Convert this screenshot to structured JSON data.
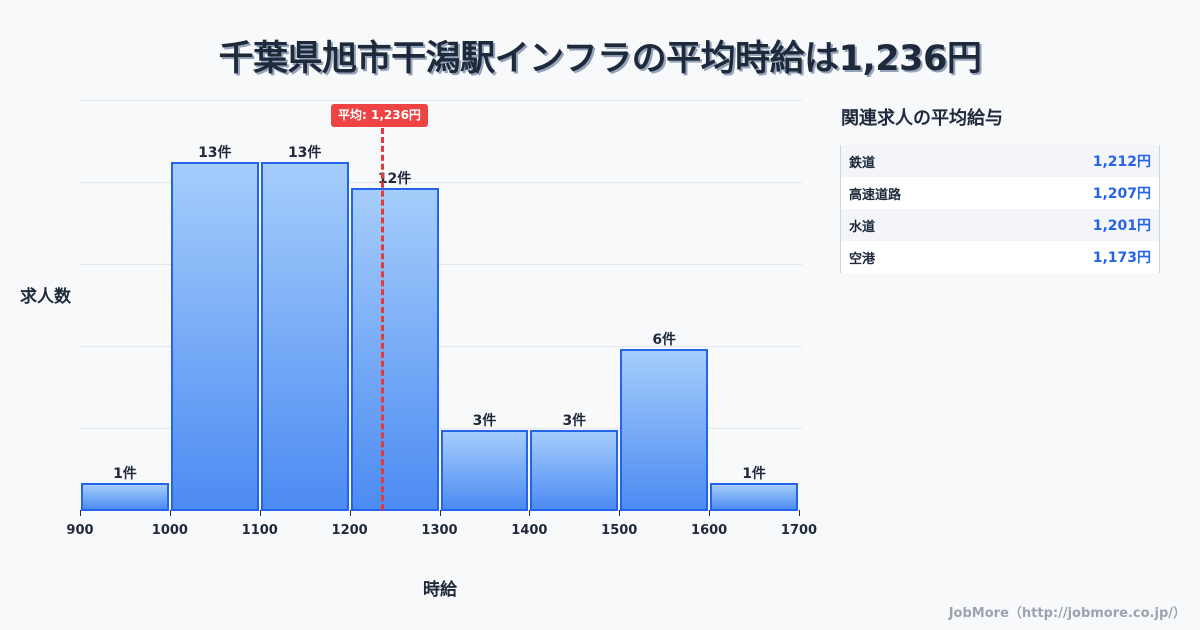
{
  "title": "千葉県旭市干潟駅インフラの平均時給は1,236円",
  "chart_data": {
    "type": "bar",
    "subtype": "histogram",
    "title": "千葉県旭市干潟駅インフラの平均時給は1,236円",
    "xlabel": "時給",
    "ylabel": "求人数",
    "bins": [
      {
        "from": 900,
        "to": 1000,
        "count": 1,
        "label": "1件"
      },
      {
        "from": 1000,
        "to": 1100,
        "count": 13,
        "label": "13件"
      },
      {
        "from": 1100,
        "to": 1200,
        "count": 13,
        "label": "13件"
      },
      {
        "from": 1200,
        "to": 1300,
        "count": 12,
        "label": "12件"
      },
      {
        "from": 1300,
        "to": 1400,
        "count": 3,
        "label": "3件"
      },
      {
        "from": 1400,
        "to": 1500,
        "count": 3,
        "label": "3件"
      },
      {
        "from": 1500,
        "to": 1600,
        "count": 6,
        "label": "6件"
      },
      {
        "from": 1600,
        "to": 1700,
        "count": 1,
        "label": "1件"
      }
    ],
    "categories": [
      "900-1000",
      "1000-1100",
      "1100-1200",
      "1200-1300",
      "1300-1400",
      "1400-1500",
      "1500-1600",
      "1600-1700"
    ],
    "values": [
      1,
      13,
      13,
      12,
      3,
      3,
      6,
      1
    ],
    "x_ticks": [
      "900",
      "1000",
      "1100",
      "1200",
      "1300",
      "1400",
      "1500",
      "1600",
      "1700"
    ],
    "xlim": [
      900,
      1700
    ],
    "ylim": [
      0,
      15.3
    ],
    "grid": true,
    "mean": {
      "value": 1236,
      "label": "平均: 1,236円"
    },
    "colors": {
      "bar_fill_top": "#a5cdfb",
      "bar_fill_bottom": "#4c8bf2",
      "bar_border": "#2563eb",
      "mean_line": "#e23b3b"
    }
  },
  "side_panel": {
    "title": "関連求人の平均給与",
    "rows": [
      {
        "name": "鉄道",
        "value": "1,212円"
      },
      {
        "name": "高速道路",
        "value": "1,207円"
      },
      {
        "name": "水道",
        "value": "1,201円"
      },
      {
        "name": "空港",
        "value": "1,173円"
      }
    ]
  },
  "credit": "JobMore（http://jobmore.co.jp/）"
}
